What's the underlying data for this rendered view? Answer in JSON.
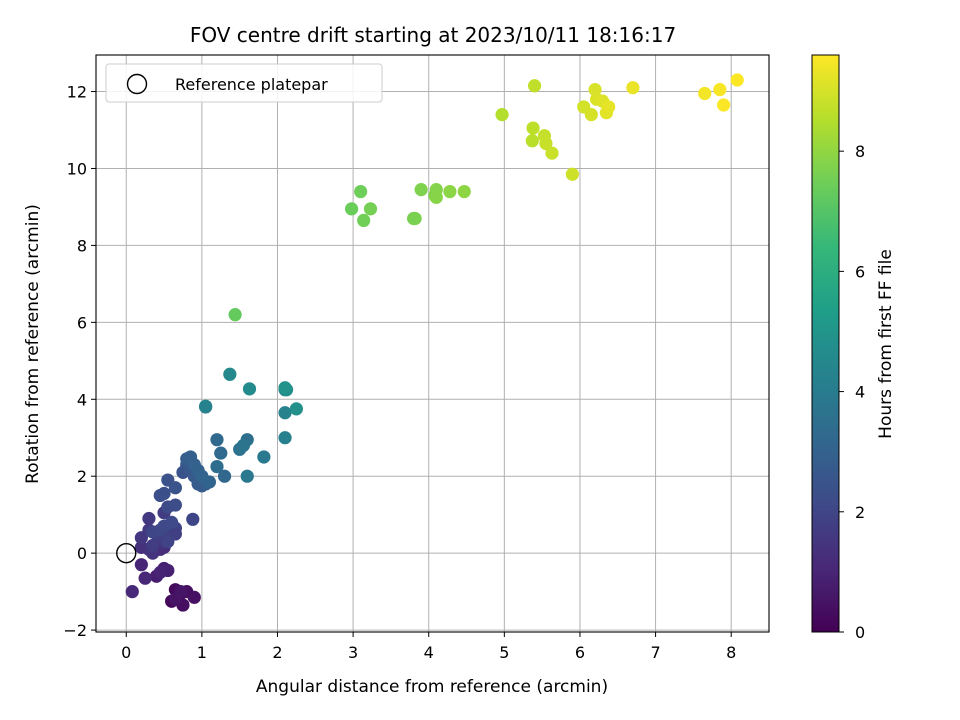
{
  "chart_data": {
    "type": "scatter",
    "title": "FOV centre drift starting at 2023/10/11 18:16:17",
    "xlabel": "Angular distance from reference (arcmin)",
    "ylabel": "Rotation from reference (arcmin)",
    "xlim": [
      -0.4,
      8.5
    ],
    "ylim": [
      -2.05,
      12.95
    ],
    "xticks": [
      0,
      1,
      2,
      3,
      4,
      5,
      6,
      7,
      8
    ],
    "xtick_labels": [
      "0",
      "1",
      "2",
      "3",
      "4",
      "5",
      "6",
      "7",
      "8"
    ],
    "yticks": [
      -2,
      0,
      2,
      4,
      6,
      8,
      10,
      12
    ],
    "ytick_labels": [
      "−2",
      "0",
      "2",
      "4",
      "6",
      "8",
      "10",
      "12"
    ],
    "grid": true,
    "legend": {
      "placement": "upper-left",
      "entries": [
        {
          "label": "Reference platepar",
          "marker": "open-circle"
        }
      ]
    },
    "reference_point": {
      "x": 0,
      "y": 0
    },
    "colorbar": {
      "label": "Hours from first FF file",
      "colormap": "viridis",
      "range": [
        0,
        9.6
      ],
      "ticks": [
        0,
        2,
        4,
        6,
        8
      ],
      "tick_labels": [
        "0",
        "2",
        "4",
        "6",
        "8"
      ]
    },
    "series": [
      {
        "x": [
          0.6,
          0.65,
          0.7,
          0.75,
          0.8,
          0.9,
          0.65,
          0.72,
          0.4,
          0.5,
          0.55,
          0.45,
          0.2,
          0.25,
          0.08,
          0.45,
          0.5,
          0.4,
          0.2,
          0.3,
          0.35,
          0.45,
          0.5,
          0.4,
          0.3,
          0.35,
          0.45,
          0.55,
          0.6,
          0.65,
          0.2,
          0.3,
          0.5,
          0.65,
          0.55,
          0.88,
          0.35,
          0.45,
          0.5,
          0.6,
          0.55,
          0.65,
          0.45,
          0.5,
          0.55,
          0.65,
          0.75,
          0.8,
          0.85,
          0.9,
          0.95,
          1.0,
          1.05,
          0.8,
          0.85,
          0.9,
          0.95,
          1.0,
          1.1,
          1.3,
          1.2,
          1.25,
          1.2,
          1.6,
          1.5,
          1.55,
          1.6,
          1.82,
          1.05,
          2.1,
          2.1,
          2.1,
          1.37,
          1.05,
          1.63,
          2.12,
          2.25,
          2.1,
          1.44,
          2.98,
          3.1,
          3.14,
          3.23,
          3.8,
          3.82,
          3.9,
          4.08,
          4.1,
          4.1,
          4.28,
          4.47,
          4.97,
          5.37,
          5.38,
          5.4,
          5.53,
          5.55,
          5.63,
          5.9,
          6.05,
          6.15,
          6.2,
          6.22,
          6.3,
          6.35,
          6.38,
          6.7,
          7.65,
          7.85,
          7.9,
          8.08
        ],
        "y": [
          -1.25,
          -0.95,
          -1.1,
          -1.35,
          -1.0,
          -1.15,
          -1.2,
          -1.0,
          -0.6,
          -0.4,
          -0.45,
          -0.5,
          -0.3,
          -0.65,
          -1.0,
          0.1,
          0.15,
          0.2,
          0.15,
          0.1,
          0.0,
          0.35,
          0.3,
          0.5,
          0.6,
          0.2,
          0.45,
          0.4,
          0.6,
          0.65,
          0.4,
          0.9,
          1.05,
          0.5,
          0.3,
          0.88,
          0.55,
          0.6,
          0.7,
          0.8,
          1.2,
          1.25,
          1.5,
          1.55,
          1.9,
          1.7,
          2.1,
          2.3,
          2.2,
          2.0,
          1.8,
          1.75,
          1.8,
          2.45,
          2.5,
          2.3,
          2.15,
          2.0,
          1.85,
          2.0,
          2.95,
          2.6,
          2.25,
          2.95,
          2.7,
          2.8,
          2.0,
          2.5,
          3.8,
          3.0,
          3.65,
          4.25,
          4.65,
          3.82,
          4.27,
          4.25,
          3.75,
          4.3,
          6.2,
          8.95,
          9.4,
          8.65,
          8.95,
          8.7,
          8.7,
          9.45,
          9.3,
          9.45,
          9.25,
          9.4,
          9.4,
          11.4,
          10.72,
          11.05,
          12.15,
          10.85,
          10.65,
          10.4,
          9.85,
          11.6,
          11.4,
          12.05,
          11.8,
          11.75,
          11.45,
          11.6,
          12.1,
          11.95,
          12.05,
          11.65,
          12.3
        ],
        "hours": [
          0.2,
          0.25,
          0.3,
          0.35,
          0.4,
          0.45,
          0.5,
          0.55,
          0.8,
          0.85,
          0.9,
          0.95,
          1.0,
          1.05,
          1.1,
          1.2,
          1.25,
          1.3,
          1.35,
          1.4,
          1.45,
          1.5,
          1.55,
          1.6,
          1.65,
          1.7,
          1.75,
          1.8,
          1.85,
          1.9,
          1.5,
          1.6,
          1.7,
          1.8,
          1.9,
          2.0,
          2.0,
          2.05,
          2.1,
          2.15,
          2.2,
          2.25,
          2.3,
          2.35,
          2.4,
          2.45,
          2.5,
          2.55,
          2.6,
          2.65,
          2.7,
          2.75,
          2.8,
          2.85,
          2.9,
          2.95,
          3.0,
          3.05,
          3.1,
          3.15,
          3.2,
          3.3,
          3.4,
          3.5,
          3.6,
          3.7,
          3.8,
          3.9,
          4.0,
          4.2,
          4.3,
          4.4,
          4.5,
          4.3,
          4.6,
          4.7,
          4.8,
          4.9,
          7.3,
          7.4,
          7.45,
          7.5,
          7.55,
          7.6,
          7.65,
          7.7,
          7.75,
          7.8,
          7.85,
          7.9,
          7.95,
          8.5,
          8.6,
          8.65,
          8.7,
          8.75,
          8.8,
          8.85,
          8.9,
          8.95,
          9.0,
          9.05,
          9.1,
          9.15,
          9.2,
          9.25,
          9.3,
          9.45,
          9.5,
          9.55,
          9.6
        ]
      }
    ]
  }
}
